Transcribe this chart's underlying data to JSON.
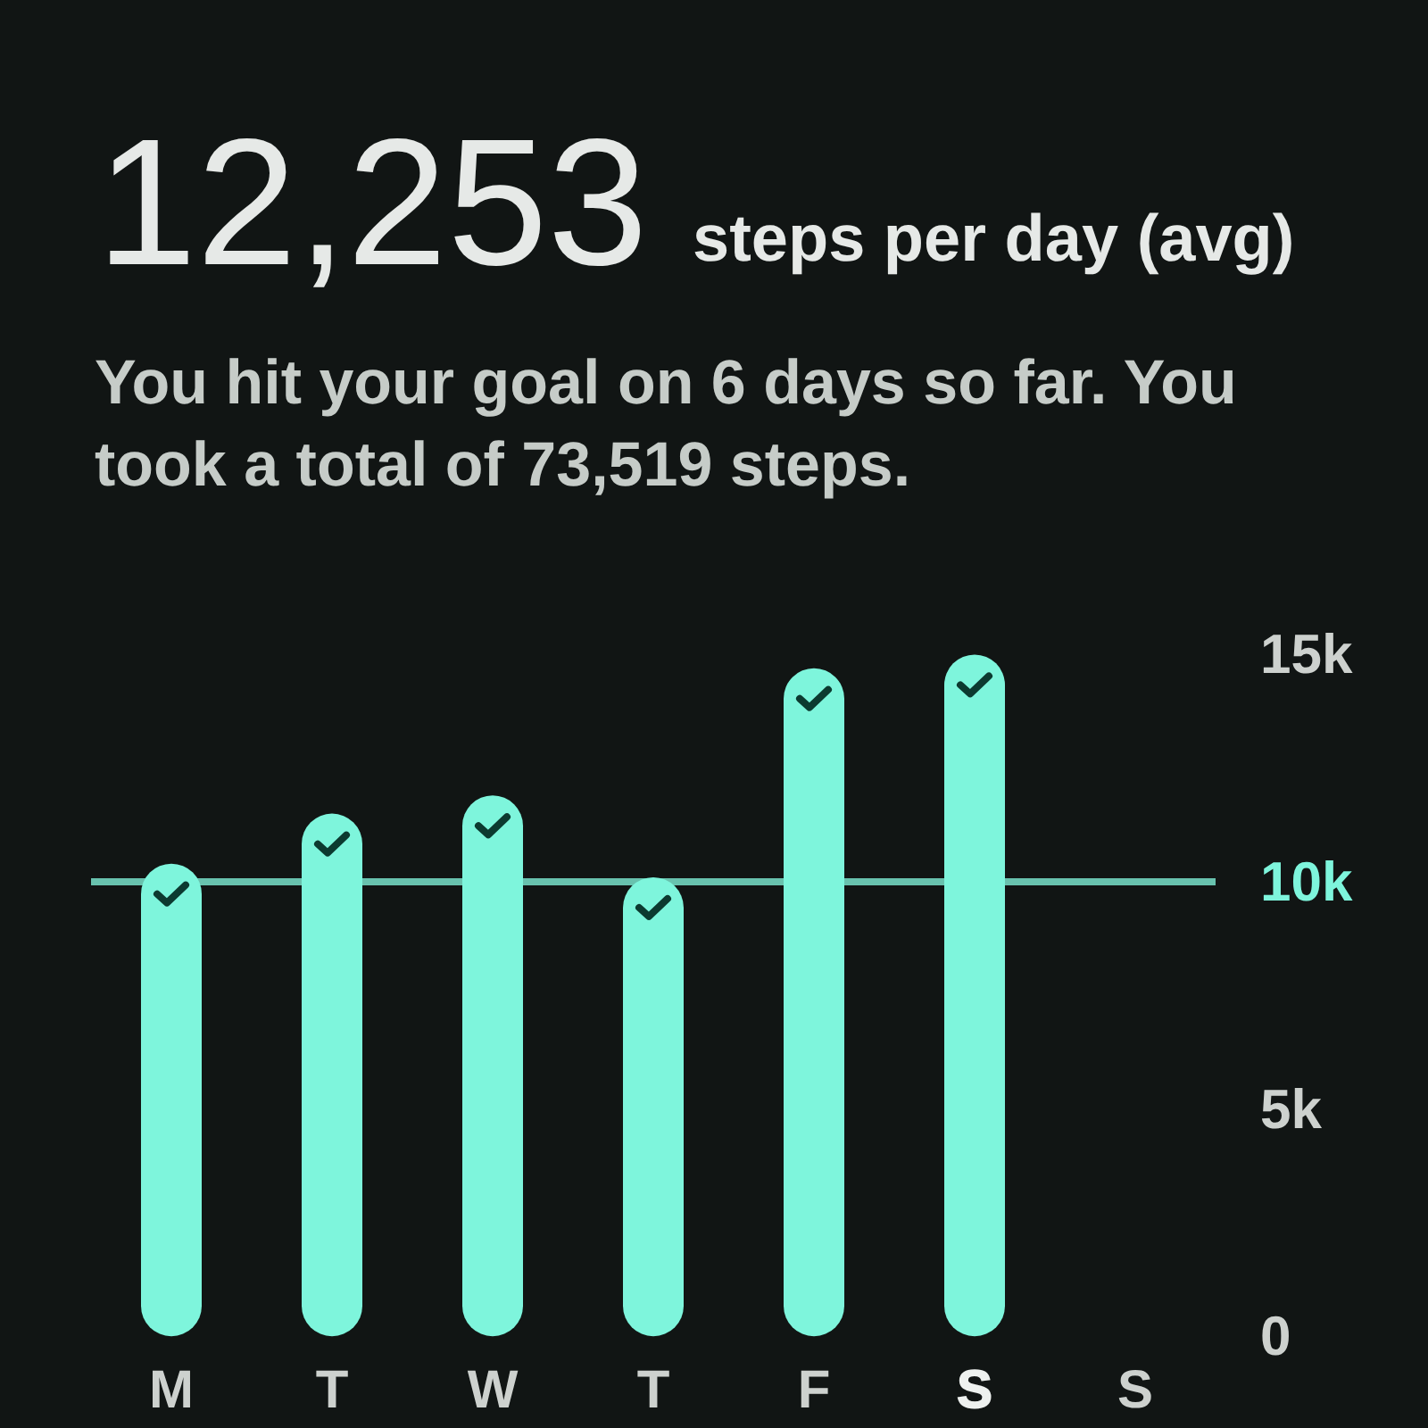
{
  "chart_data": {
    "type": "bar",
    "title": "12,253",
    "subtitle": "steps per day (avg)",
    "annotations": [
      "You hit your goal on 6 days so far. You took a total of 73,519 steps."
    ],
    "categories": [
      "M",
      "T",
      "W",
      "T",
      "F",
      "S",
      "S"
    ],
    "values": [
      10400,
      11500,
      11900,
      10100,
      14700,
      15000,
      null
    ],
    "color": "#7ef5dc",
    "ylim": [
      0,
      15000
    ],
    "yticks": [
      0,
      {
        "value": 5000,
        "label": "5k"
      },
      {
        "value": 10000,
        "label": "10k"
      },
      {
        "value": 15000,
        "label": "15k"
      }
    ],
    "ref_lines": [
      {
        "axis": "y",
        "value": 10000,
        "color": "#68c2ae"
      }
    ]
  }
}
